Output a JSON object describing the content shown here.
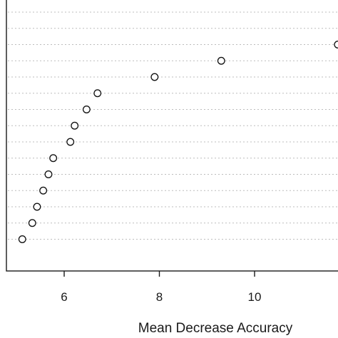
{
  "chart_data": {
    "type": "scatter",
    "title": "",
    "xlabel": "Mean Decrease Accuracy",
    "ylabel": "",
    "x_ticks": [
      6,
      8,
      10
    ],
    "x_tick_labels": [
      "6",
      "8",
      "10"
    ],
    "xlim": [
      4.75,
      12.25
    ],
    "grid": "horizontal dotted lines at each variable row",
    "variable_rows": 15,
    "points": [
      {
        "row": 1,
        "x": 11.75
      },
      {
        "row": 2,
        "x": 9.3
      },
      {
        "row": 3,
        "x": 7.9
      },
      {
        "row": 4,
        "x": 6.7
      },
      {
        "row": 5,
        "x": 6.47
      },
      {
        "row": 6,
        "x": 6.22
      },
      {
        "row": 7,
        "x": 6.13
      },
      {
        "row": 8,
        "x": 5.77
      },
      {
        "row": 9,
        "x": 5.67
      },
      {
        "row": 10,
        "x": 5.56
      },
      {
        "row": 11,
        "x": 5.43
      },
      {
        "row": 12,
        "x": 5.33
      },
      {
        "row": 13,
        "x": 5.12
      }
    ],
    "empty_rows": [
      14,
      15
    ]
  }
}
